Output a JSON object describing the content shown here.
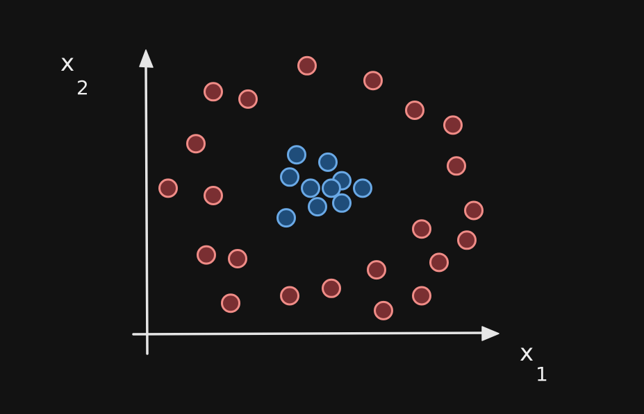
{
  "chart_data": {
    "type": "scatter",
    "title": "",
    "xlabel": "x",
    "xlabel_subscript": "1",
    "ylabel": "x",
    "ylabel_subscript": "2",
    "xlim": [
      0,
      10
    ],
    "ylim": [
      0,
      8
    ],
    "grid": false,
    "legend": "none",
    "ticks_shown": false,
    "series": [
      {
        "fill": "#7a2f32",
        "stroke": "#f08c87",
        "points": [
          [
            4.6,
            7.2
          ],
          [
            6.5,
            6.8
          ],
          [
            1.9,
            6.5
          ],
          [
            2.9,
            6.3
          ],
          [
            7.7,
            6.0
          ],
          [
            8.8,
            5.6
          ],
          [
            1.4,
            5.1
          ],
          [
            8.9,
            4.5
          ],
          [
            0.6,
            3.9
          ],
          [
            1.9,
            3.7
          ],
          [
            9.4,
            3.3
          ],
          [
            7.9,
            2.8
          ],
          [
            9.2,
            2.5
          ],
          [
            1.7,
            2.1
          ],
          [
            2.6,
            2.0
          ],
          [
            8.4,
            1.9
          ],
          [
            6.6,
            1.7
          ],
          [
            5.3,
            1.2
          ],
          [
            4.1,
            1.0
          ],
          [
            7.9,
            1.0
          ],
          [
            2.4,
            0.8
          ],
          [
            6.8,
            0.6
          ]
        ]
      },
      {
        "fill": "#1f4d7a",
        "stroke": "#6aa9e6",
        "points": [
          [
            4.3,
            4.8
          ],
          [
            5.2,
            4.6
          ],
          [
            4.1,
            4.2
          ],
          [
            5.6,
            4.1
          ],
          [
            4.7,
            3.9
          ],
          [
            5.3,
            3.9
          ],
          [
            6.2,
            3.9
          ],
          [
            4.9,
            3.4
          ],
          [
            5.6,
            3.5
          ],
          [
            4.0,
            3.1
          ]
        ]
      }
    ]
  }
}
